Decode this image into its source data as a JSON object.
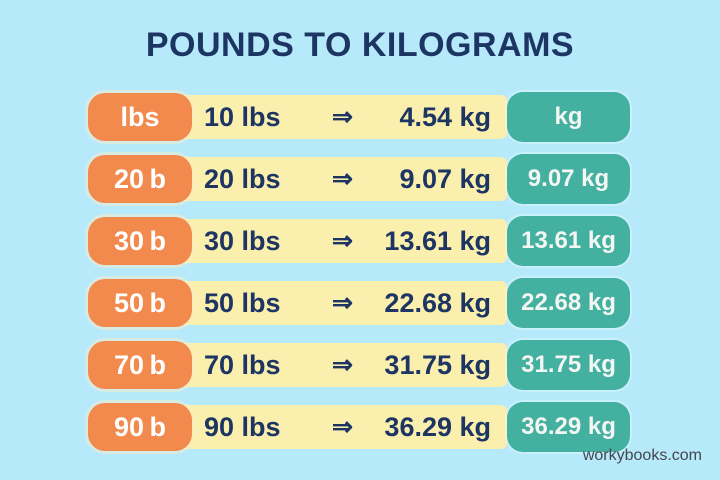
{
  "title": "POUNDS TO KILOGRAMS",
  "watermark": "workybooks.com",
  "arrow": "⇒",
  "colors": {
    "background": "#b6eafa",
    "orange_pill": "#f18a4c",
    "yellow_bar": "#fbefae",
    "teal_pill": "#44b0a0",
    "navy_text": "#1d3563",
    "pill_text": "#ffffff",
    "watermark_text": "#45464f"
  },
  "rows": [
    {
      "lbs_pill": "lbs",
      "lbs": "10 lbs",
      "kg": "4.54 kg",
      "kg_pill": "kg"
    },
    {
      "lbs_pill": "20 b",
      "lbs": "20 lbs",
      "kg": "9.07 kg",
      "kg_pill": "9.07 kg"
    },
    {
      "lbs_pill": "30 b",
      "lbs": "30 lbs",
      "kg": "13.61 kg",
      "kg_pill": "13.61 kg"
    },
    {
      "lbs_pill": "50 b",
      "lbs": "50 lbs",
      "kg": "22.68 kg",
      "kg_pill": "22.68 kg"
    },
    {
      "lbs_pill": "70 b",
      "lbs": "70 lbs",
      "kg": "31.75 kg",
      "kg_pill": "31.75 kg"
    },
    {
      "lbs_pill": "90 b",
      "lbs": "90 lbs",
      "kg": "36.29 kg",
      "kg_pill": "36.29 kg"
    }
  ],
  "chart_data": {
    "type": "table",
    "title": "POUNDS TO KILOGRAMS",
    "columns": [
      "pounds (lbs)",
      "kilograms (kg)"
    ],
    "rows": [
      [
        10,
        4.54
      ],
      [
        20,
        9.07
      ],
      [
        30,
        13.61
      ],
      [
        50,
        22.68
      ],
      [
        70,
        31.75
      ],
      [
        90,
        36.29
      ]
    ]
  }
}
